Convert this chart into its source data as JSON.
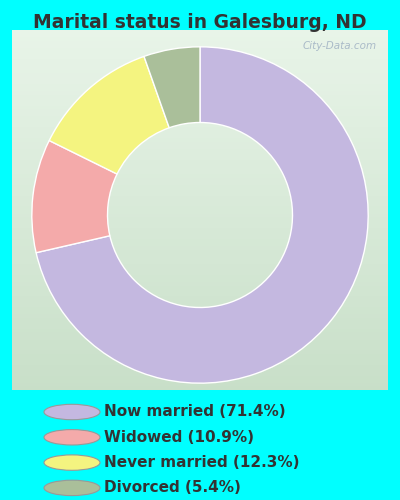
{
  "title": "Marital status in Galesburg, ND",
  "slices": [
    {
      "label": "Now married (71.4%)",
      "value": 71.4,
      "color": "#c4b8e0"
    },
    {
      "label": "Widowed (10.9%)",
      "value": 10.9,
      "color": "#f4aaaa"
    },
    {
      "label": "Never married (12.3%)",
      "value": 12.3,
      "color": "#f4f480"
    },
    {
      "label": "Divorced (5.4%)",
      "value": 5.4,
      "color": "#aabf9a"
    }
  ],
  "bg_outer": "#00ffff",
  "bg_chart_top": "#e8f4e8",
  "bg_chart_bottom": "#c8dfc8",
  "title_fontsize": 13.5,
  "legend_fontsize": 11,
  "watermark": "City-Data.com",
  "start_angle": 90,
  "donut_width": 0.45
}
